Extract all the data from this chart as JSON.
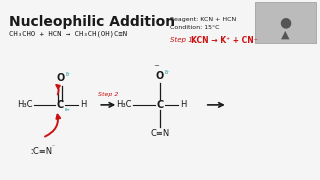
{
  "title": "Nucleophilic Addition",
  "bg_color": "#f5f5f5",
  "overall_eq": "CH₃CHO + HCN → CH₃CH(OH)C≡N",
  "reagent_line1": "Reagent: KCN + HCN",
  "reagent_line2": "Condition: 15°C",
  "step1_prefix": "Step 1: ",
  "step1_main": "KCN → K⁺ + CN⁻",
  "step2_label": "Step 2",
  "text_color": "#1a1a1a",
  "red_color": "#cc1111",
  "teal_color": "#009090",
  "gray_color": "#888888",
  "white_bg": "#f5f5f5"
}
